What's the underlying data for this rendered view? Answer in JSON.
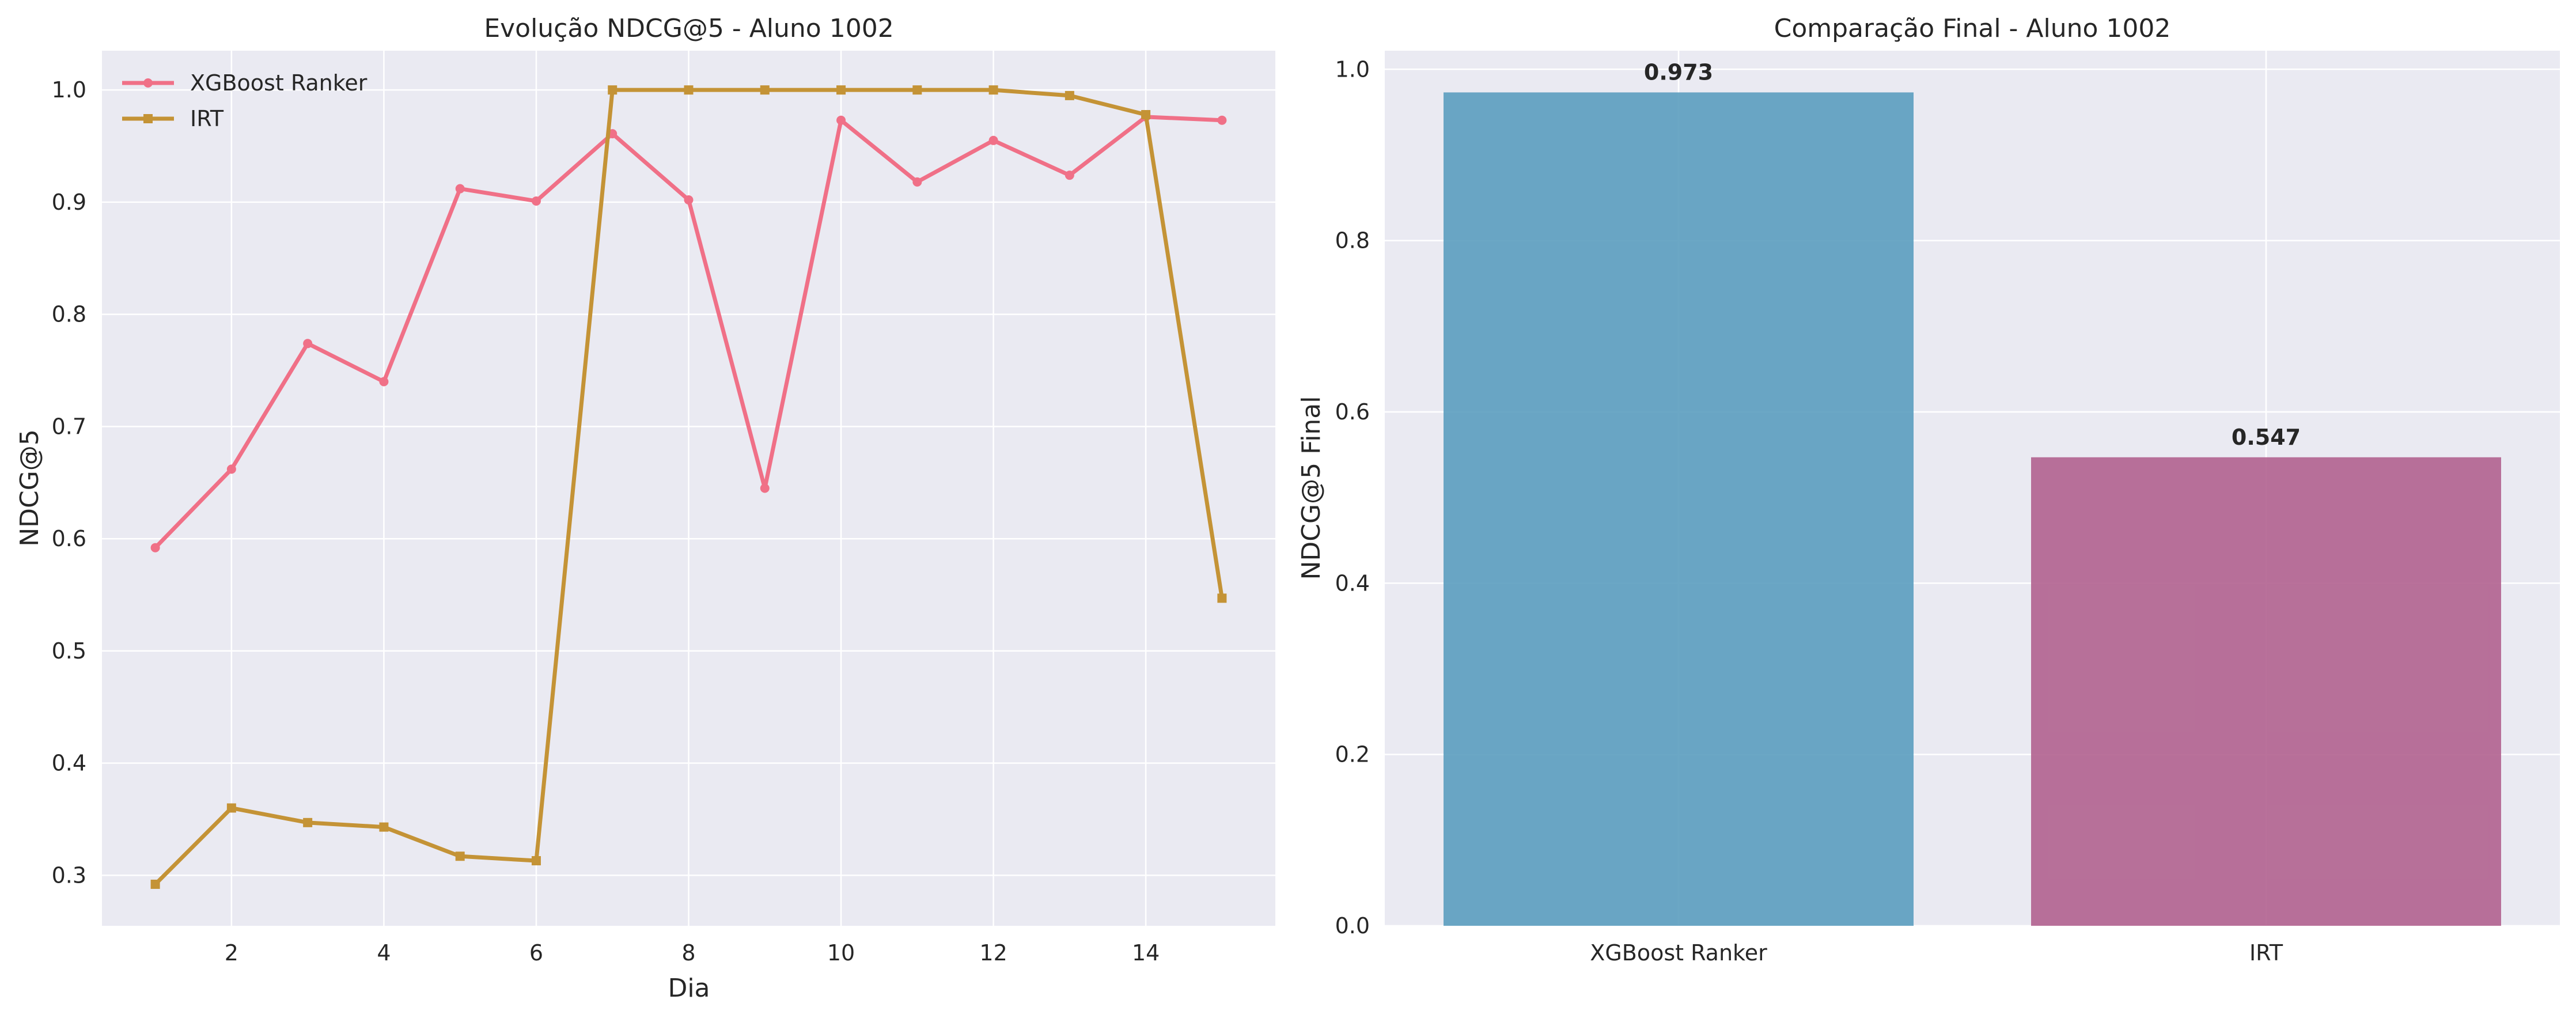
{
  "chart_data": [
    {
      "type": "line",
      "title": "Evolução NDCG@5 - Aluno 1002",
      "xlabel": "Dia",
      "ylabel": "NDCG@5",
      "x": [
        1,
        2,
        3,
        4,
        5,
        6,
        7,
        8,
        9,
        10,
        11,
        12,
        13,
        14,
        15
      ],
      "xticks": [
        "2",
        "4",
        "6",
        "8",
        "10",
        "12",
        "14"
      ],
      "yticks": [
        "0.3",
        "0.4",
        "0.5",
        "0.6",
        "0.7",
        "0.8",
        "0.9",
        "1.0"
      ],
      "xlim": [
        0.3,
        15.7
      ],
      "ylim": [
        0.255,
        1.035
      ],
      "grid": true,
      "legend_position": "top-left",
      "series": [
        {
          "name": "XGBoost Ranker",
          "color": "#f07087",
          "marker": "circle",
          "values": [
            0.592,
            0.662,
            0.774,
            0.74,
            0.912,
            0.901,
            0.961,
            0.902,
            0.645,
            0.973,
            0.918,
            0.955,
            0.924,
            0.976,
            0.973
          ]
        },
        {
          "name": "IRT",
          "color": "#c49336",
          "marker": "square",
          "values": [
            0.292,
            0.36,
            0.347,
            0.343,
            0.317,
            0.313,
            1.0,
            1.0,
            1.0,
            1.0,
            1.0,
            1.0,
            0.995,
            0.978,
            0.547
          ]
        }
      ]
    },
    {
      "type": "bar",
      "title": "Comparação Final - Aluno 1002",
      "xlabel": "",
      "ylabel": "NDCG@5 Final",
      "categories": [
        "XGBoost Ranker",
        "IRT"
      ],
      "values": [
        0.973,
        0.547
      ],
      "value_labels": [
        "0.973",
        "0.547"
      ],
      "colors": [
        "#5b9dbf",
        "#b1628f"
      ],
      "yticks": [
        "0.0",
        "0.2",
        "0.4",
        "0.6",
        "0.8",
        "1.0"
      ],
      "ylim": [
        0,
        1.0217
      ],
      "grid": true
    }
  ]
}
